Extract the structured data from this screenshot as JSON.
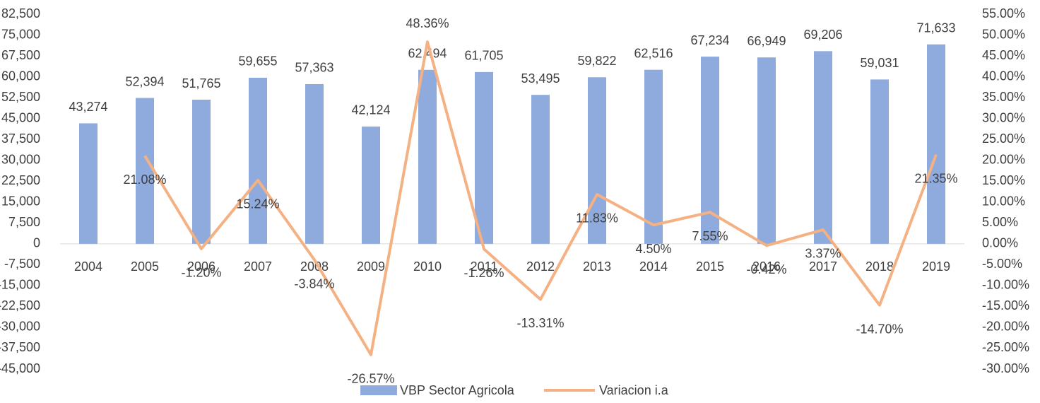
{
  "chart_data": {
    "type": "bar-line",
    "categories": [
      "2004",
      "2005",
      "2006",
      "2007",
      "2008",
      "2009",
      "2010",
      "2011",
      "2012",
      "2013",
      "2014",
      "2015",
      "2016",
      "2017",
      "2018",
      "2019"
    ],
    "series": [
      {
        "name": "VBP Sector Agricola",
        "type": "bar",
        "color": "#8faadc",
        "values": [
          43274,
          52394,
          51765,
          59655,
          57363,
          42124,
          62494,
          61705,
          53495,
          59822,
          62516,
          67234,
          66949,
          69206,
          59031,
          71633
        ],
        "value_labels": [
          "43,274",
          "52,394",
          "51,765",
          "59,655",
          "57,363",
          "42,124",
          "62,494",
          "61,705",
          "53,495",
          "59,822",
          "62,516",
          "67,234",
          "66,949",
          "69,206",
          "59,031",
          "71,633"
        ]
      },
      {
        "name": "Variacion i.a",
        "type": "line",
        "axis": "y2",
        "color": "#f4b183",
        "values": [
          null,
          21.08,
          -1.2,
          15.24,
          -3.84,
          -26.57,
          48.36,
          -1.26,
          -13.31,
          11.83,
          4.5,
          7.55,
          -0.42,
          3.37,
          -14.7,
          21.35
        ],
        "value_labels": [
          null,
          "21.08%",
          "-1.20%",
          "15.24%",
          "-3.84%",
          "-26.57%",
          "48.36%",
          "-1.26%",
          "-13.31%",
          "11.83%",
          "4.50%",
          "7.55%",
          "-0.42%",
          "3.37%",
          "-14.70%",
          "21.35%"
        ]
      }
    ],
    "ylim": [
      -45000,
      82500
    ],
    "yticks": [
      {
        "value": 82500,
        "label": "82,500"
      },
      {
        "value": 75000,
        "label": "75,000"
      },
      {
        "value": 67500,
        "label": "67,500"
      },
      {
        "value": 60000,
        "label": "60,000"
      },
      {
        "value": 52500,
        "label": "52,500"
      },
      {
        "value": 45000,
        "label": "45,000"
      },
      {
        "value": 37500,
        "label": "37,500"
      },
      {
        "value": 30000,
        "label": "30,000"
      },
      {
        "value": 22500,
        "label": "22,500"
      },
      {
        "value": 15000,
        "label": "15,000"
      },
      {
        "value": 7500,
        "label": "7,500"
      },
      0,
      {
        "value": -7500,
        "label": "-7,500"
      },
      {
        "value": -15000,
        "label": "-15,000"
      },
      {
        "value": -22500,
        "label": "-22,500"
      },
      {
        "value": -30000,
        "label": "-30,000"
      },
      {
        "value": -37500,
        "label": "-37,500"
      },
      {
        "value": -45000,
        "label": "-45,000"
      }
    ],
    "y2lim": [
      -30,
      55
    ],
    "y2ticks": [
      {
        "value": 55,
        "label": "55.00%"
      },
      {
        "value": 50,
        "label": "50.00%"
      },
      {
        "value": 45,
        "label": "45.00%"
      },
      {
        "value": 40,
        "label": "40.00%"
      },
      {
        "value": 35,
        "label": "35.00%"
      },
      {
        "value": 30,
        "label": "30.00%"
      },
      {
        "value": 25,
        "label": "25.00%"
      },
      {
        "value": 20,
        "label": "20.00%"
      },
      {
        "value": 15,
        "label": "15.00%"
      },
      {
        "value": 10,
        "label": "10.00%"
      },
      {
        "value": 5,
        "label": "5.00%"
      },
      {
        "value": 0,
        "label": "0.00%"
      },
      {
        "value": -5,
        "label": "-5.00%"
      },
      {
        "value": -10,
        "label": "-10.00%"
      },
      {
        "value": -15,
        "label": "-15.00%"
      },
      {
        "value": -20,
        "label": "-20.00%"
      },
      {
        "value": -25,
        "label": "-25.00%"
      },
      {
        "value": -30,
        "label": "-30.00%"
      }
    ],
    "grid": false,
    "legend": "bottom"
  }
}
